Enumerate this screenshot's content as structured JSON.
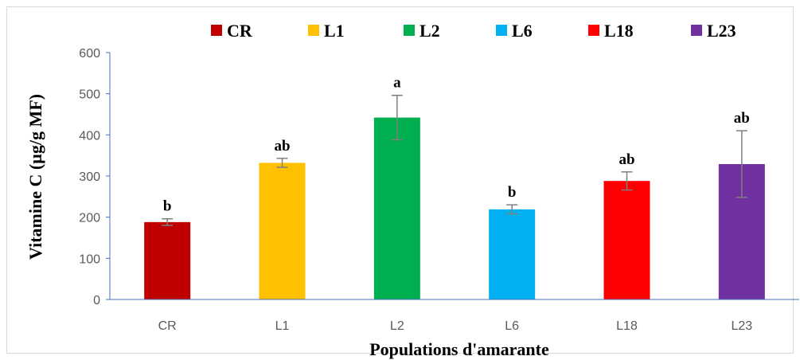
{
  "chart_data": {
    "type": "bar",
    "categories": [
      "CR",
      "L1",
      "L2",
      "L6",
      "L18",
      "L23"
    ],
    "values": [
      188,
      332,
      442,
      219,
      288,
      329
    ],
    "error": [
      8,
      11,
      54,
      11,
      22,
      81
    ],
    "significance": [
      "b",
      "ab",
      "a",
      "b",
      "ab",
      "ab"
    ],
    "colors": [
      "#c00000",
      "#ffc000",
      "#00b050",
      "#00b0f0",
      "#ff0000",
      "#7030a0"
    ],
    "title": "",
    "xlabel": "Populations d'amarante",
    "ylabel": "Vitamine C (µg/g MF)",
    "ylim": [
      0,
      600
    ],
    "yticks": [
      0,
      100,
      200,
      300,
      400,
      500,
      600
    ],
    "legend": [
      "CR",
      "L1",
      "L2",
      "L6",
      "L18",
      "L23"
    ],
    "legend_position": "top",
    "grid": false,
    "axis_color": "#4472c4",
    "error_bar_color": "#7f7f7f"
  }
}
